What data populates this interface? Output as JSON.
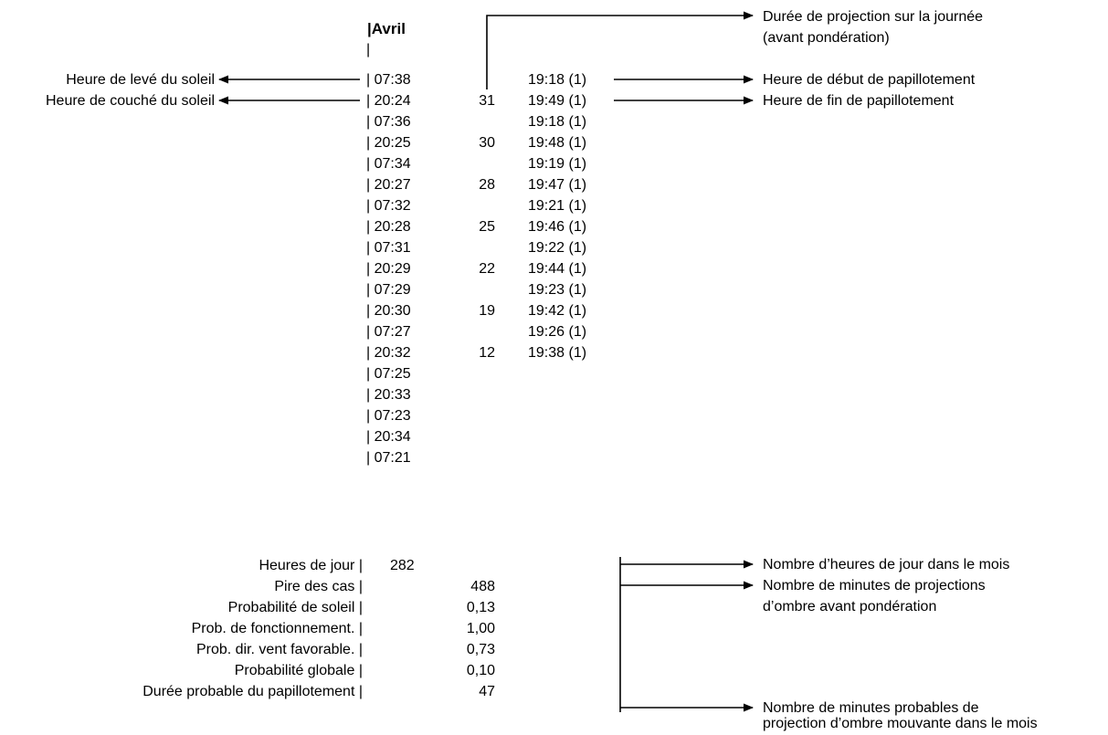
{
  "header": {
    "month": "Avril"
  },
  "rows": [
    {
      "sun": "07:38",
      "minutes": "",
      "time": "19:18 (1)"
    },
    {
      "sun": "20:24",
      "minutes": "31",
      "time": "19:49 (1)"
    },
    {
      "sun": "07:36",
      "minutes": "",
      "time": "19:18 (1)"
    },
    {
      "sun": "20:25",
      "minutes": "30",
      "time": "19:48 (1)"
    },
    {
      "sun": "07:34",
      "minutes": "",
      "time": "19:19 (1)"
    },
    {
      "sun": "20:27",
      "minutes": "28",
      "time": "19:47 (1)"
    },
    {
      "sun": "07:32",
      "minutes": "",
      "time": "19:21 (1)"
    },
    {
      "sun": "20:28",
      "minutes": "25",
      "time": "19:46 (1)"
    },
    {
      "sun": "07:31",
      "minutes": "",
      "time": "19:22 (1)"
    },
    {
      "sun": "20:29",
      "minutes": "22",
      "time": "19:44 (1)"
    },
    {
      "sun": "07:29",
      "minutes": "",
      "time": "19:23 (1)"
    },
    {
      "sun": "20:30",
      "minutes": "19",
      "time": "19:42 (1)"
    },
    {
      "sun": "07:27",
      "minutes": "",
      "time": "19:26 (1)"
    },
    {
      "sun": "20:32",
      "minutes": "12",
      "time": "19:38 (1)"
    },
    {
      "sun": "07:25",
      "minutes": "",
      "time": ""
    },
    {
      "sun": "20:33",
      "minutes": "",
      "time": ""
    },
    {
      "sun": "07:23",
      "minutes": "",
      "time": ""
    },
    {
      "sun": "20:34",
      "minutes": "",
      "time": ""
    },
    {
      "sun": "07:21",
      "minutes": "",
      "time": ""
    }
  ],
  "summary": [
    {
      "label": "Heures de jour",
      "value": "282"
    },
    {
      "label": "Pire des cas",
      "value": "488"
    },
    {
      "label": "Probabilité de soleil",
      "value": "0,13"
    },
    {
      "label": "Prob. de fonctionnement.",
      "value": "1,00"
    },
    {
      "label": "Prob. dir. vent favorable.",
      "value": "0,73"
    },
    {
      "label": "Probabilité globale",
      "value": "0,10"
    },
    {
      "label": "Durée probable du papillotement",
      "value": "47"
    }
  ],
  "annotations": {
    "sunrise": "Heure de levé du soleil",
    "sunset": "Heure de couché du soleil",
    "projection_duration_1": "Durée de projection sur la journée",
    "projection_duration_2": "(avant pondération)",
    "flicker_start": "Heure de début de papillotement",
    "flicker_end": "Heure de fin de papillotement",
    "daylight_hours": "Nombre d’heures de jour dans le mois",
    "worst_case_1": "Nombre de minutes de projections",
    "worst_case_2": "d’ombre avant pondération",
    "probable_1": "Nombre de minutes probables de",
    "probable_2": "projection d’ombre mouvante dans le mois"
  }
}
